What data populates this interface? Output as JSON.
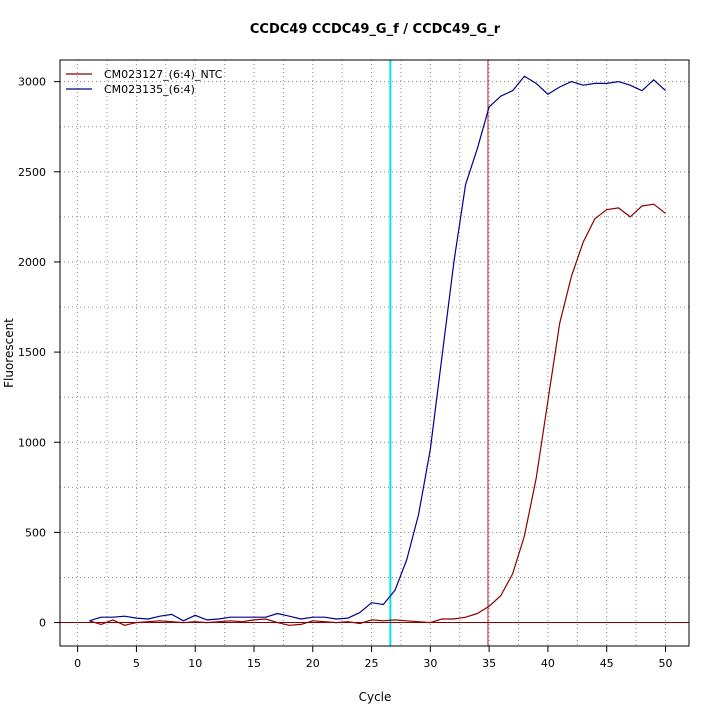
{
  "chart_data": {
    "type": "line",
    "title": "CCDC49  CCDC49_G_f / CCDC49_G_r",
    "xlabel": "Cycle",
    "ylabel": "Fluorescent",
    "xlim": [
      -1.5,
      52
    ],
    "ylim": [
      -130,
      3120
    ],
    "x_ticks": [
      0,
      5,
      10,
      15,
      20,
      25,
      30,
      35,
      40,
      45,
      50
    ],
    "y_ticks": [
      0,
      500,
      1000,
      1500,
      2000,
      2500,
      3000
    ],
    "grid": true,
    "legend_position": "top-left",
    "threshold_line": {
      "y": 0,
      "color": "#8b0000"
    },
    "marker_lines": [
      {
        "x": 26.6,
        "color": "#00e5ee"
      },
      {
        "x": 34.9,
        "color": "#b22222"
      }
    ],
    "series": [
      {
        "name": "CM023127_(6:4)_NTC",
        "color": "#8b0000",
        "x": [
          1,
          2,
          3,
          4,
          5,
          6,
          7,
          8,
          9,
          10,
          11,
          12,
          13,
          14,
          15,
          16,
          17,
          18,
          19,
          20,
          21,
          22,
          23,
          24,
          25,
          26,
          27,
          28,
          29,
          30,
          31,
          32,
          33,
          34,
          35,
          36,
          37,
          38,
          39,
          40,
          41,
          42,
          43,
          44,
          45,
          46,
          47,
          48,
          49,
          50
        ],
        "y": [
          10,
          -10,
          15,
          -15,
          0,
          5,
          10,
          5,
          0,
          5,
          0,
          5,
          10,
          5,
          15,
          20,
          0,
          -15,
          -10,
          10,
          5,
          0,
          5,
          -5,
          15,
          10,
          15,
          10,
          5,
          0,
          20,
          20,
          30,
          50,
          90,
          150,
          270,
          480,
          800,
          1230,
          1660,
          1920,
          2110,
          2240,
          2290,
          2300,
          2250,
          2310,
          2320,
          2270
        ]
      },
      {
        "name": "CM023135_(6:4)",
        "color": "#00008b",
        "x": [
          1,
          2,
          3,
          4,
          5,
          6,
          7,
          8,
          9,
          10,
          11,
          12,
          13,
          14,
          15,
          16,
          17,
          18,
          19,
          20,
          21,
          22,
          23,
          24,
          25,
          26,
          27,
          28,
          29,
          30,
          31,
          32,
          33,
          34,
          35,
          36,
          37,
          38,
          39,
          40,
          41,
          42,
          43,
          44,
          45,
          46,
          47,
          48,
          49,
          50
        ],
        "y": [
          10,
          30,
          30,
          35,
          25,
          20,
          35,
          45,
          10,
          40,
          15,
          20,
          30,
          30,
          30,
          30,
          50,
          35,
          20,
          30,
          30,
          20,
          25,
          55,
          110,
          100,
          180,
          350,
          600,
          960,
          1480,
          2000,
          2430,
          2630,
          2860,
          2920,
          2950,
          3030,
          2990,
          2930,
          2970,
          3000,
          2980,
          2990,
          2990,
          3000,
          2980,
          2950,
          3010,
          2950
        ]
      }
    ]
  }
}
